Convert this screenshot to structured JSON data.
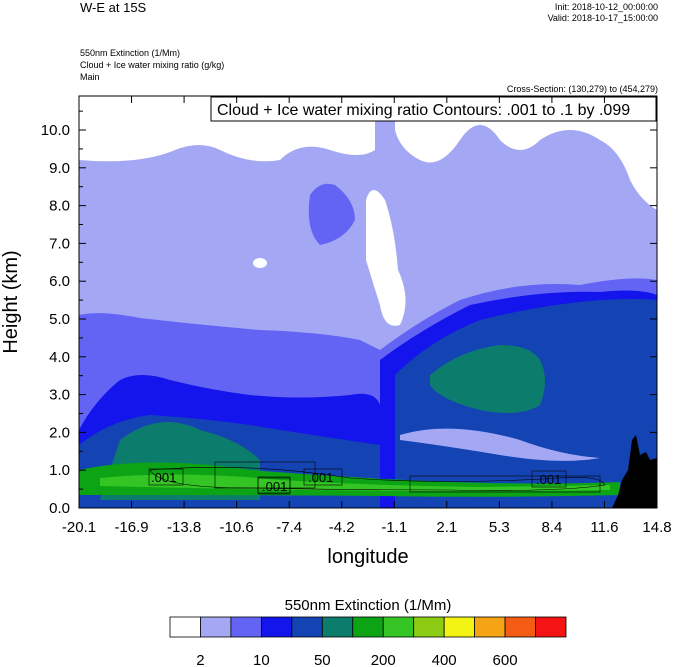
{
  "header": {
    "title": "W-E at 15S",
    "init": "Init: 2018-10-12_00:00:00",
    "valid": "Valid: 2018-10-17_15:00:00",
    "field1": "550nm Extinction   (1/Mm)",
    "field2": "Cloud + Ice water mixing ratio   (g/kg)",
    "field3": "Main",
    "cross_section": "Cross-Section: (130,279) to (454,279)"
  },
  "chart_data": {
    "type": "heatmap",
    "title": "Cloud + Ice water mixing ratio Contours: .001 to .1 by .099",
    "xlabel": "longitude",
    "ylabel": "Height (km)",
    "x_ticks": [
      "-20.1",
      "-16.9",
      "-13.8",
      "-10.6",
      "-7.4",
      "-4.2",
      "-1.1",
      "2.1",
      "5.3",
      "8.4",
      "11.6",
      "14.8"
    ],
    "y_ticks": [
      "0.0",
      "1.0",
      "2.0",
      "3.0",
      "4.0",
      "5.0",
      "6.0",
      "7.0",
      "8.0",
      "9.0",
      "10.0"
    ],
    "ylim": [
      0,
      10.9
    ],
    "contour_labels": [
      ".001",
      ".001",
      ".001",
      ".001"
    ],
    "colorbar": {
      "title": "550nm Extinction  (1/Mm)",
      "colors": [
        "#ffffff",
        "#a4a8f4",
        "#6464f4",
        "#1414ec",
        "#1444b4",
        "#0c7c6c",
        "#0ca414",
        "#34c424",
        "#8ccc14",
        "#f4f414",
        "#f4a414",
        "#f45c14",
        "#f41414"
      ],
      "tick_labels": [
        "2",
        "10",
        "50",
        "200",
        "400",
        "600"
      ]
    }
  }
}
